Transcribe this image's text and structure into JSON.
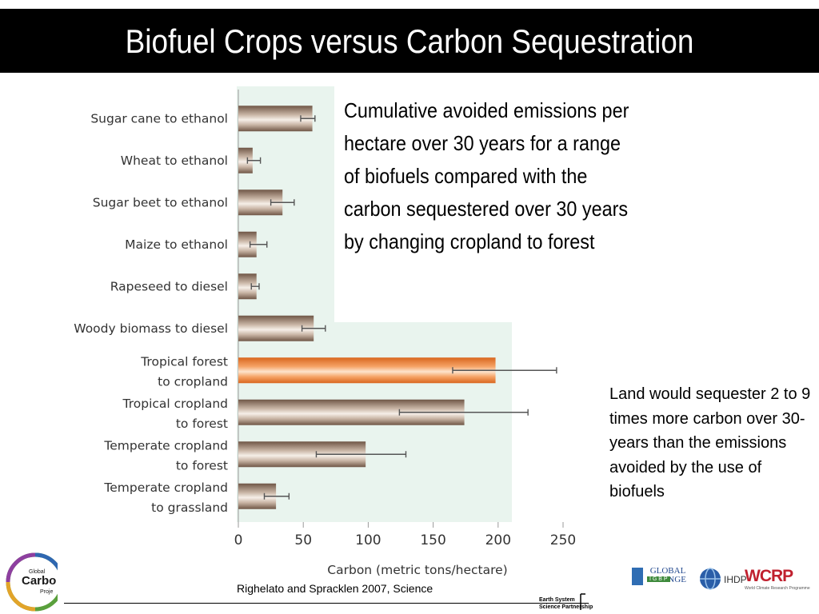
{
  "slide": {
    "title": "Biofuel Crops versus Carbon Sequestration",
    "description": "Cumulative avoided emissions per hectare over 30 years for a range of biofuels compared with the carbon sequestered over 30 years by changing cropland to forest",
    "note": "Land would sequester 2 to 9 times more carbon over 30-years than the emissions avoided by the use of biofuels",
    "citation": "Righelato and Spracklen 2007, Science"
  },
  "logos": {
    "gcp_line1": "Global",
    "gcp_line2": "Carbo",
    "gcp_line3": "Proje",
    "essp_line1": "Earth System",
    "essp_line2": "Science Partnership",
    "global_change": "GLOBAL CHANGE",
    "igbp": "I G B P",
    "ihdp": "IHDP",
    "wcrp": "WCRP",
    "wcrp_sub": "World Climate Research Programme"
  },
  "colors": {
    "title_bg": "#000000",
    "bar_brown": "#9c7f6a",
    "bar_orange": "#f08a3c",
    "panel_green": "#e9f4ee"
  },
  "chart_data": {
    "type": "bar",
    "orientation": "horizontal",
    "xlabel": "Carbon (metric tons/hectare)",
    "ylabel": "",
    "xlim": [
      0,
      250
    ],
    "xticks": [
      0,
      50,
      100,
      150,
      200,
      250
    ],
    "categories": [
      [
        "Sugar cane to ethanol"
      ],
      [
        "Wheat to ethanol"
      ],
      [
        "Sugar beet to ethanol"
      ],
      [
        "Maize to ethanol"
      ],
      [
        "Rapeseed to diesel"
      ],
      [
        "Woody biomass to diesel"
      ],
      [
        "Tropical forest",
        "to cropland"
      ],
      [
        "Tropical cropland",
        "to forest"
      ],
      [
        "Temperate cropland",
        "to forest"
      ],
      [
        "Temperate cropland",
        "to grassland"
      ]
    ],
    "values": [
      57,
      11,
      34,
      14,
      14,
      58,
      198,
      174,
      98,
      29
    ],
    "error_low": [
      48,
      7,
      25,
      9,
      10,
      49,
      165,
      124,
      60,
      20
    ],
    "error_high": [
      59,
      17,
      43,
      22,
      16,
      67,
      245,
      223,
      129,
      39
    ],
    "highlight_index": 6,
    "grid": false,
    "legend": "none"
  }
}
